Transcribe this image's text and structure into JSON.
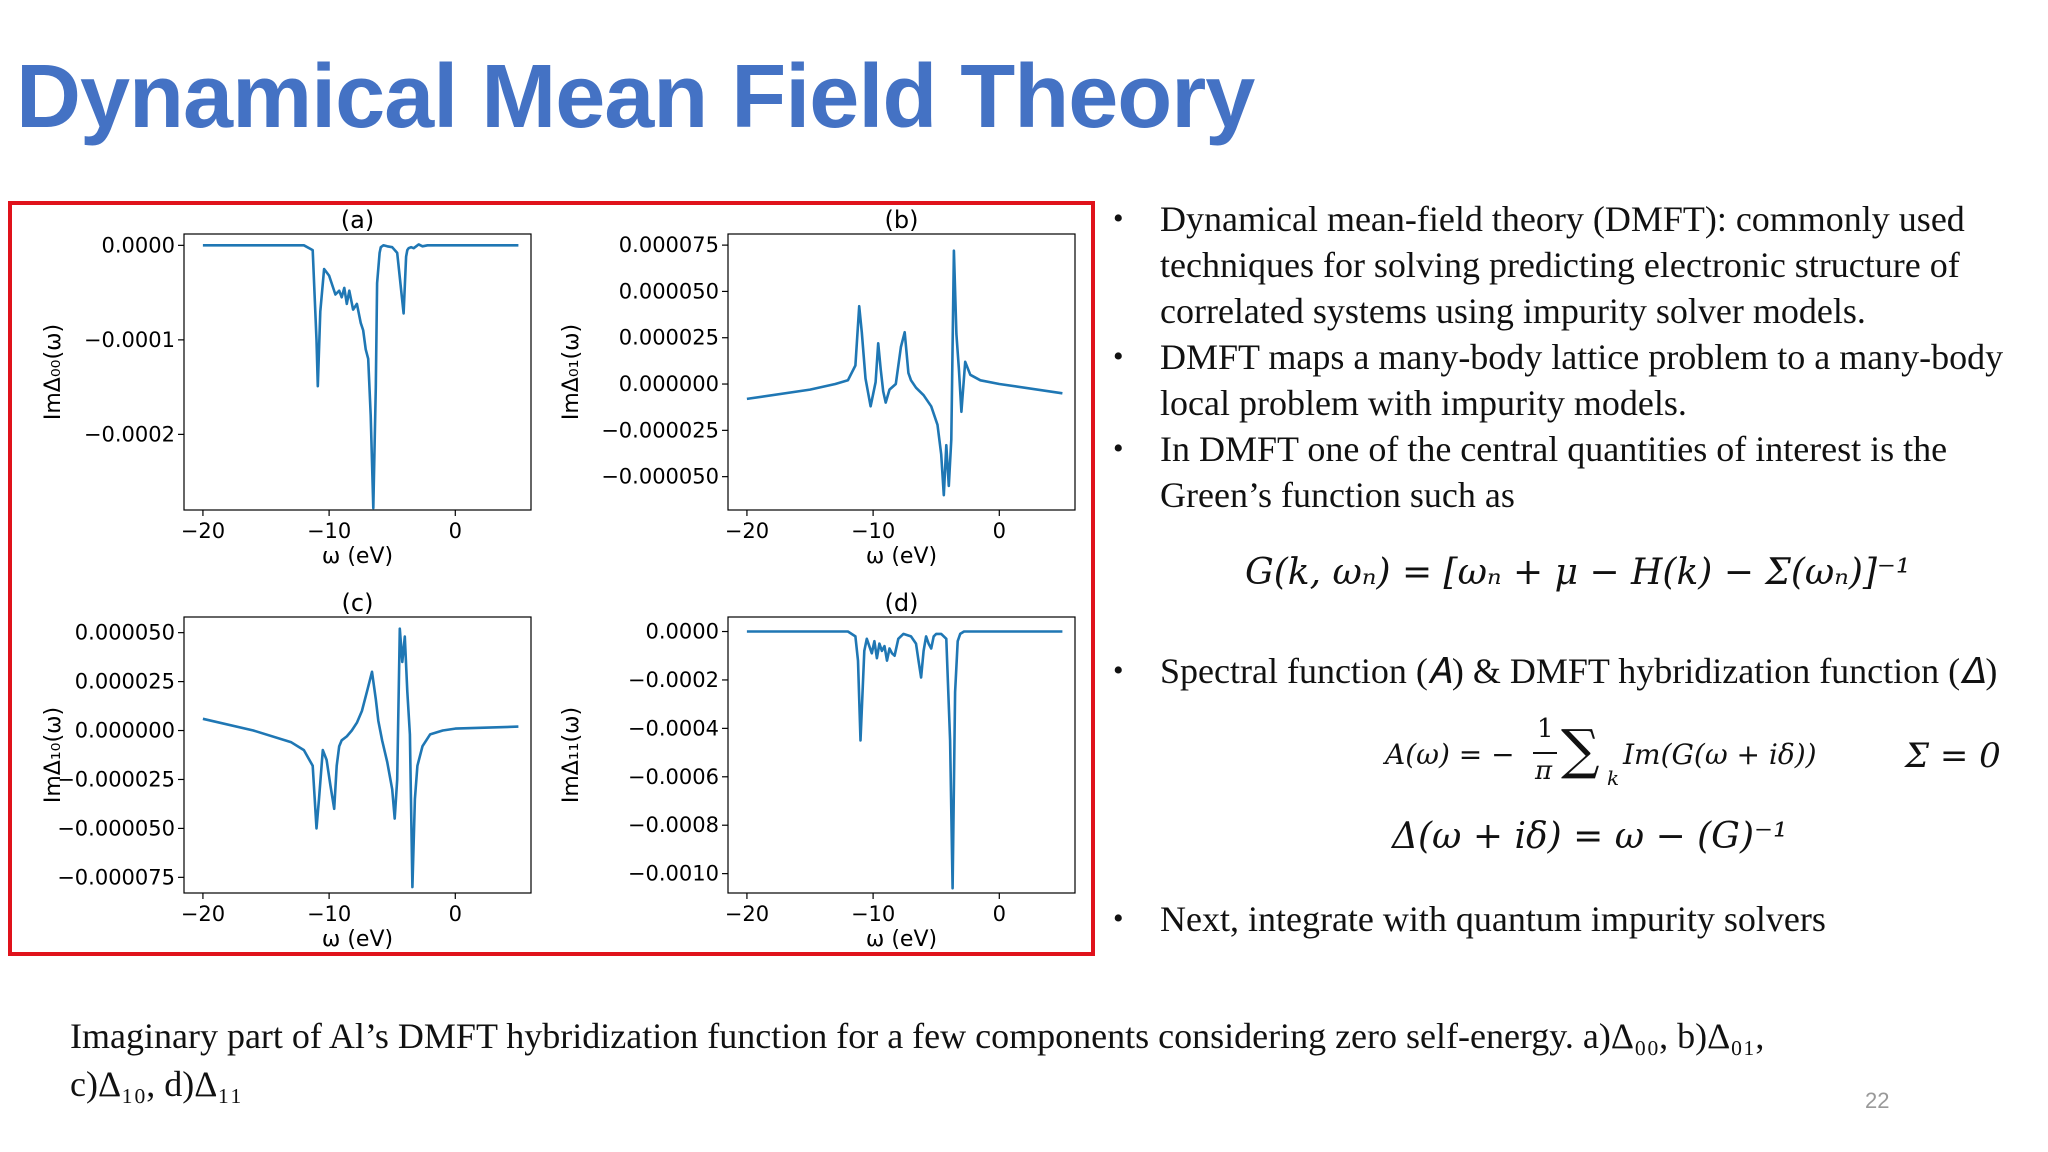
{
  "title": "Dynamical Mean Field Theory",
  "bullets": [
    "Dynamical mean-field theory (DMFT): commonly used techniques for solving predicting electronic structure of correlated systems using impurity solver models.",
    "DMFT maps a many-body lattice problem to a many-body local problem with impurity models.",
    "In DMFT one of the central quantities of interest is the Green’s function such as"
  ],
  "bullet_spectral": "Spectral function (𝐴) & DMFT hybridization function (𝛥)",
  "bullet_next": "Next, integrate with quantum impurity solvers",
  "equations": {
    "green": "G(k, ωₙ) = [ωₙ + μ − H(k) − Σ(ωₙ)]⁻¹",
    "spectral_lhs": "A(ω) = −",
    "spectral_frac_num": "1",
    "spectral_frac_den": "π",
    "spectral_sum_sub": "k",
    "spectral_rhs": "Im(G(ω + iδ))",
    "sigma_zero": "Σ = 0",
    "hybridization": "Δ(ω + iδ) = ω − (G)⁻¹"
  },
  "caption_line1": "Imaginary part of Al’s DMFT hybridization function for a few components considering zero self-energy. a)Δ₀₀, b)Δ₀₁,",
  "caption_line2": "c)Δ₁₀, d)Δ₁₁",
  "page_number": "22",
  "colors": {
    "title": "#4472c4",
    "frame": "#e0121b",
    "line": "#1f77b4"
  },
  "chart_data": [
    {
      "type": "line",
      "panel_label": "(a)",
      "xlabel": "ω (eV)",
      "ylabel": "ImΔ₀₀(ω)",
      "xlim": [
        -21.5,
        6
      ],
      "ylim": [
        -0.00028,
        1.2e-05
      ],
      "xticks": [
        -20,
        -10,
        0
      ],
      "xtick_labels": [
        "−20",
        "−10",
        "0"
      ],
      "yticks": [
        0.0,
        -0.0001,
        -0.0002
      ],
      "ytick_labels": [
        "0.0000",
        "−0.0001",
        "−0.0002"
      ],
      "x": [
        -20,
        -12,
        -11.3,
        -11,
        -10.9,
        -10.7,
        -10.4,
        -10.0,
        -9.5,
        -9.2,
        -9.0,
        -8.8,
        -8.6,
        -8.4,
        -8.1,
        -7.8,
        -7.5,
        -7.3,
        -7.1,
        -6.9,
        -6.7,
        -6.5,
        -6.3,
        -6.2,
        -6.0,
        -5.9,
        -5.7,
        -5.4,
        -5.0,
        -4.6,
        -4.1,
        -3.9,
        -3.8,
        -3.7,
        -3.5,
        -3.3,
        -3.1,
        -2.9,
        -2.6,
        -2.2,
        -1.5,
        5
      ],
      "y": [
        0.0,
        0.0,
        -5e-06,
        -0.0001,
        -0.000149,
        -7e-05,
        -2.5e-05,
        -3.2e-05,
        -5.2e-05,
        -4.8e-05,
        -5.5e-05,
        -4.5e-05,
        -6.2e-05,
        -4.8e-05,
        -6.8e-05,
        -6.2e-05,
        -8.2e-05,
        -9e-05,
        -0.00011,
        -0.00012,
        -0.00018,
        -0.000278,
        -0.00015,
        -4e-05,
        -8e-06,
        -2e-06,
        0.0,
        -1e-06,
        -2e-06,
        -8e-06,
        -7.2e-05,
        -1.2e-05,
        -5e-06,
        -3e-06,
        -2e-06,
        -3e-06,
        -1e-06,
        1e-06,
        -1e-06,
        0.0,
        0.0,
        0.0
      ]
    },
    {
      "type": "line",
      "panel_label": "(b)",
      "xlabel": "ω (eV)",
      "ylabel": "ImΔ₀₁(ω)",
      "xlim": [
        -21.5,
        6
      ],
      "ylim": [
        -6.8e-05,
        8.1e-05
      ],
      "xticks": [
        -20,
        -10,
        0
      ],
      "xtick_labels": [
        "−20",
        "−10",
        "0"
      ],
      "yticks": [
        7.5e-05,
        5e-05,
        2.5e-05,
        0.0,
        -2.5e-05,
        -5e-05
      ],
      "ytick_labels": [
        "0.000075",
        "0.000050",
        "0.000025",
        "0.000000",
        "−0.000025",
        "−0.000050"
      ],
      "x": [
        -20,
        -15,
        -13,
        -12,
        -11.4,
        -11.1,
        -10.9,
        -10.6,
        -10.2,
        -9.8,
        -9.6,
        -9.4,
        -9.2,
        -9.0,
        -8.7,
        -8.2,
        -7.8,
        -7.5,
        -7.2,
        -7.0,
        -6.6,
        -6.0,
        -5.4,
        -4.9,
        -4.6,
        -4.4,
        -4.2,
        -4.0,
        -3.8,
        -3.6,
        -3.4,
        -3.2,
        -3.0,
        -2.7,
        -2.3,
        -1.5,
        0,
        5
      ],
      "y": [
        -8e-06,
        -3e-06,
        0.0,
        2e-06,
        1e-05,
        4.2e-05,
        2.8e-05,
        3e-06,
        -1.2e-05,
        1e-06,
        2.2e-05,
        8e-06,
        -4e-06,
        -1e-05,
        -3e-06,
        0.0,
        2e-05,
        2.8e-05,
        6e-06,
        2e-06,
        -2e-06,
        -6e-06,
        -1.2e-05,
        -2.2e-05,
        -3.8e-05,
        -6e-05,
        -3.3e-05,
        -5.5e-05,
        -3e-05,
        7.2e-05,
        2.7e-05,
        8e-06,
        -1.5e-05,
        1.2e-05,
        5e-06,
        2e-06,
        -0.0,
        -5e-06
      ]
    },
    {
      "type": "line",
      "panel_label": "(c)",
      "xlabel": "ω (eV)",
      "ylabel": "ImΔ₁₀(ω)",
      "xlim": [
        -21.5,
        6
      ],
      "ylim": [
        -8.3e-05,
        5.8e-05
      ],
      "xticks": [
        -20,
        -10,
        0
      ],
      "xtick_labels": [
        "−20",
        "−10",
        "0"
      ],
      "yticks": [
        5e-05,
        2.5e-05,
        0.0,
        -2.5e-05,
        -5e-05,
        -7.5e-05
      ],
      "ytick_labels": [
        "0.000050",
        "0.000025",
        "0.000000",
        "−0.000025",
        "−0.000050",
        "−0.000075"
      ],
      "x": [
        -20,
        -16,
        -13,
        -12,
        -11.3,
        -11.0,
        -10.8,
        -10.5,
        -10.2,
        -9.9,
        -9.6,
        -9.4,
        -9.2,
        -9.0,
        -8.6,
        -8.2,
        -7.8,
        -7.4,
        -7.0,
        -6.6,
        -6.3,
        -6.1,
        -5.8,
        -5.4,
        -5.0,
        -4.8,
        -4.6,
        -4.4,
        -4.2,
        -4.0,
        -3.8,
        -3.6,
        -3.4,
        -3.2,
        -3.0,
        -2.6,
        -2.0,
        -1.0,
        0,
        5
      ],
      "y": [
        6e-06,
        0.0,
        -6e-06,
        -1e-05,
        -1.8e-05,
        -5e-05,
        -3.5e-05,
        -1e-05,
        -1.5e-05,
        -2.8e-05,
        -4e-05,
        -1.8e-05,
        -8e-06,
        -5e-06,
        -3e-06,
        0.0,
        4e-06,
        1e-05,
        2e-05,
        3e-05,
        1.6e-05,
        5e-06,
        -5e-06,
        -1.6e-05,
        -3e-05,
        -4.5e-05,
        -2.5e-05,
        5.2e-05,
        3.5e-05,
        4.8e-05,
        2e-05,
        -2e-06,
        -8e-05,
        -3.5e-05,
        -1.8e-05,
        -8e-06,
        -2e-06,
        0.0,
        1e-06,
        2e-06
      ]
    },
    {
      "type": "line",
      "panel_label": "(d)",
      "xlabel": "ω (eV)",
      "ylabel": "ImΔ₁₁(ω)",
      "xlim": [
        -21.5,
        6
      ],
      "ylim": [
        -0.00108,
        6e-05
      ],
      "xticks": [
        -20,
        -10,
        0
      ],
      "xtick_labels": [
        "−20",
        "−10",
        "0"
      ],
      "yticks": [
        0.0,
        -0.0002,
        -0.0004,
        -0.0006,
        -0.0008,
        -0.001
      ],
      "ytick_labels": [
        "0.0000",
        "−0.0002",
        "−0.0004",
        "−0.0006",
        "−0.0008",
        "−0.0010"
      ],
      "x": [
        -20,
        -12,
        -11.4,
        -11.2,
        -11.0,
        -10.7,
        -10.5,
        -10.3,
        -10.1,
        -9.9,
        -9.7,
        -9.5,
        -9.3,
        -9.1,
        -8.9,
        -8.7,
        -8.5,
        -8.3,
        -8.0,
        -7.6,
        -7.0,
        -6.6,
        -6.4,
        -6.2,
        -6.0,
        -5.8,
        -5.6,
        -5.4,
        -5.2,
        -5.0,
        -4.6,
        -4.2,
        -3.9,
        -3.7,
        -3.5,
        -3.3,
        -3.1,
        -2.8,
        -2.3,
        -1.5,
        5
      ],
      "y": [
        0.0,
        0.0,
        -2e-05,
        -0.00012,
        -0.00045,
        -8e-05,
        -3e-05,
        -6e-05,
        -9e-05,
        -4e-05,
        -0.00011,
        -5e-05,
        -8e-05,
        -6e-05,
        -0.00012,
        -7e-05,
        -9e-05,
        -0.0001,
        -3e-05,
        -1e-05,
        -2e-05,
        -5e-05,
        -0.00012,
        -0.00019,
        -8e-05,
        -2e-05,
        -5e-05,
        -7e-05,
        -2e-05,
        -1e-05,
        -1e-05,
        -3e-05,
        -0.00045,
        -0.00106,
        -0.00025,
        -4e-05,
        -1e-05,
        -0.0,
        0.0,
        0.0,
        0.0
      ]
    }
  ]
}
